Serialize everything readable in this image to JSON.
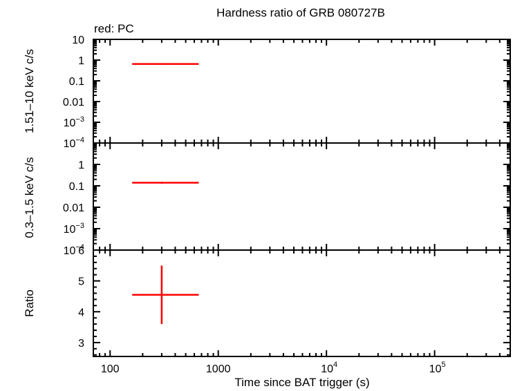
{
  "chart_data": {
    "type": "scatter",
    "title": "Hardness ratio of GRB 080727B",
    "legend_text": "red: PC",
    "xlabel": "Time since BAT trigger (s)",
    "x_scale": "log",
    "xlim": [
      70,
      500000
    ],
    "x_ticks": [
      {
        "value": 100,
        "label": "100",
        "sup": ""
      },
      {
        "value": 1000,
        "label": "1000",
        "sup": ""
      },
      {
        "value": 10000,
        "label": "10",
        "sup": "4"
      },
      {
        "value": 100000,
        "label": "10",
        "sup": "5"
      }
    ],
    "panels": [
      {
        "id": "hard",
        "ylabel": "1.51–10 keV c/s",
        "y_scale": "log",
        "ylim": [
          0.0001,
          10
        ],
        "y_ticks": [
          {
            "value": 10,
            "label": "10",
            "sup": ""
          },
          {
            "value": 1,
            "label": "1",
            "sup": ""
          },
          {
            "value": 0.1,
            "label": "0.1",
            "sup": ""
          },
          {
            "value": 0.01,
            "label": "0.01",
            "sup": ""
          },
          {
            "value": 0.001,
            "label": "10",
            "sup": "−3"
          },
          {
            "value": 0.0001,
            "label": "10",
            "sup": "−4"
          }
        ],
        "series": [
          {
            "color": "#ff0000",
            "points": [
              {
                "x": 300,
                "xlo": 160,
                "xhi": 660,
                "y": 0.65,
                "ylo": 0.6,
                "yhi": 0.7
              }
            ]
          }
        ]
      },
      {
        "id": "soft",
        "ylabel": "0.3–1.5 keV c/s",
        "y_scale": "log",
        "ylim": [
          0.0001,
          10
        ],
        "y_ticks": [
          {
            "value": 1,
            "label": "1",
            "sup": ""
          },
          {
            "value": 0.1,
            "label": "0.1",
            "sup": ""
          },
          {
            "value": 0.01,
            "label": "0.01",
            "sup": ""
          },
          {
            "value": 0.001,
            "label": "10",
            "sup": "−3"
          },
          {
            "value": 0.0001,
            "label": "10",
            "sup": "−4"
          }
        ],
        "series": [
          {
            "color": "#ff0000",
            "points": [
              {
                "x": 300,
                "xlo": 160,
                "xhi": 660,
                "y": 0.14,
                "ylo": 0.125,
                "yhi": 0.155
              }
            ]
          }
        ]
      },
      {
        "id": "ratio",
        "ylabel": "Ratio",
        "y_scale": "linear",
        "ylim": [
          2.55,
          6.0
        ],
        "y_ticks": [
          {
            "value": 6,
            "label": "6",
            "sup": ""
          },
          {
            "value": 5,
            "label": "5",
            "sup": ""
          },
          {
            "value": 4,
            "label": "4",
            "sup": ""
          },
          {
            "value": 3,
            "label": "3",
            "sup": ""
          }
        ],
        "series": [
          {
            "color": "#ff0000",
            "points": [
              {
                "x": 300,
                "xlo": 160,
                "xhi": 660,
                "y": 4.55,
                "ylo": 3.6,
                "yhi": 5.5
              }
            ]
          }
        ]
      }
    ]
  }
}
